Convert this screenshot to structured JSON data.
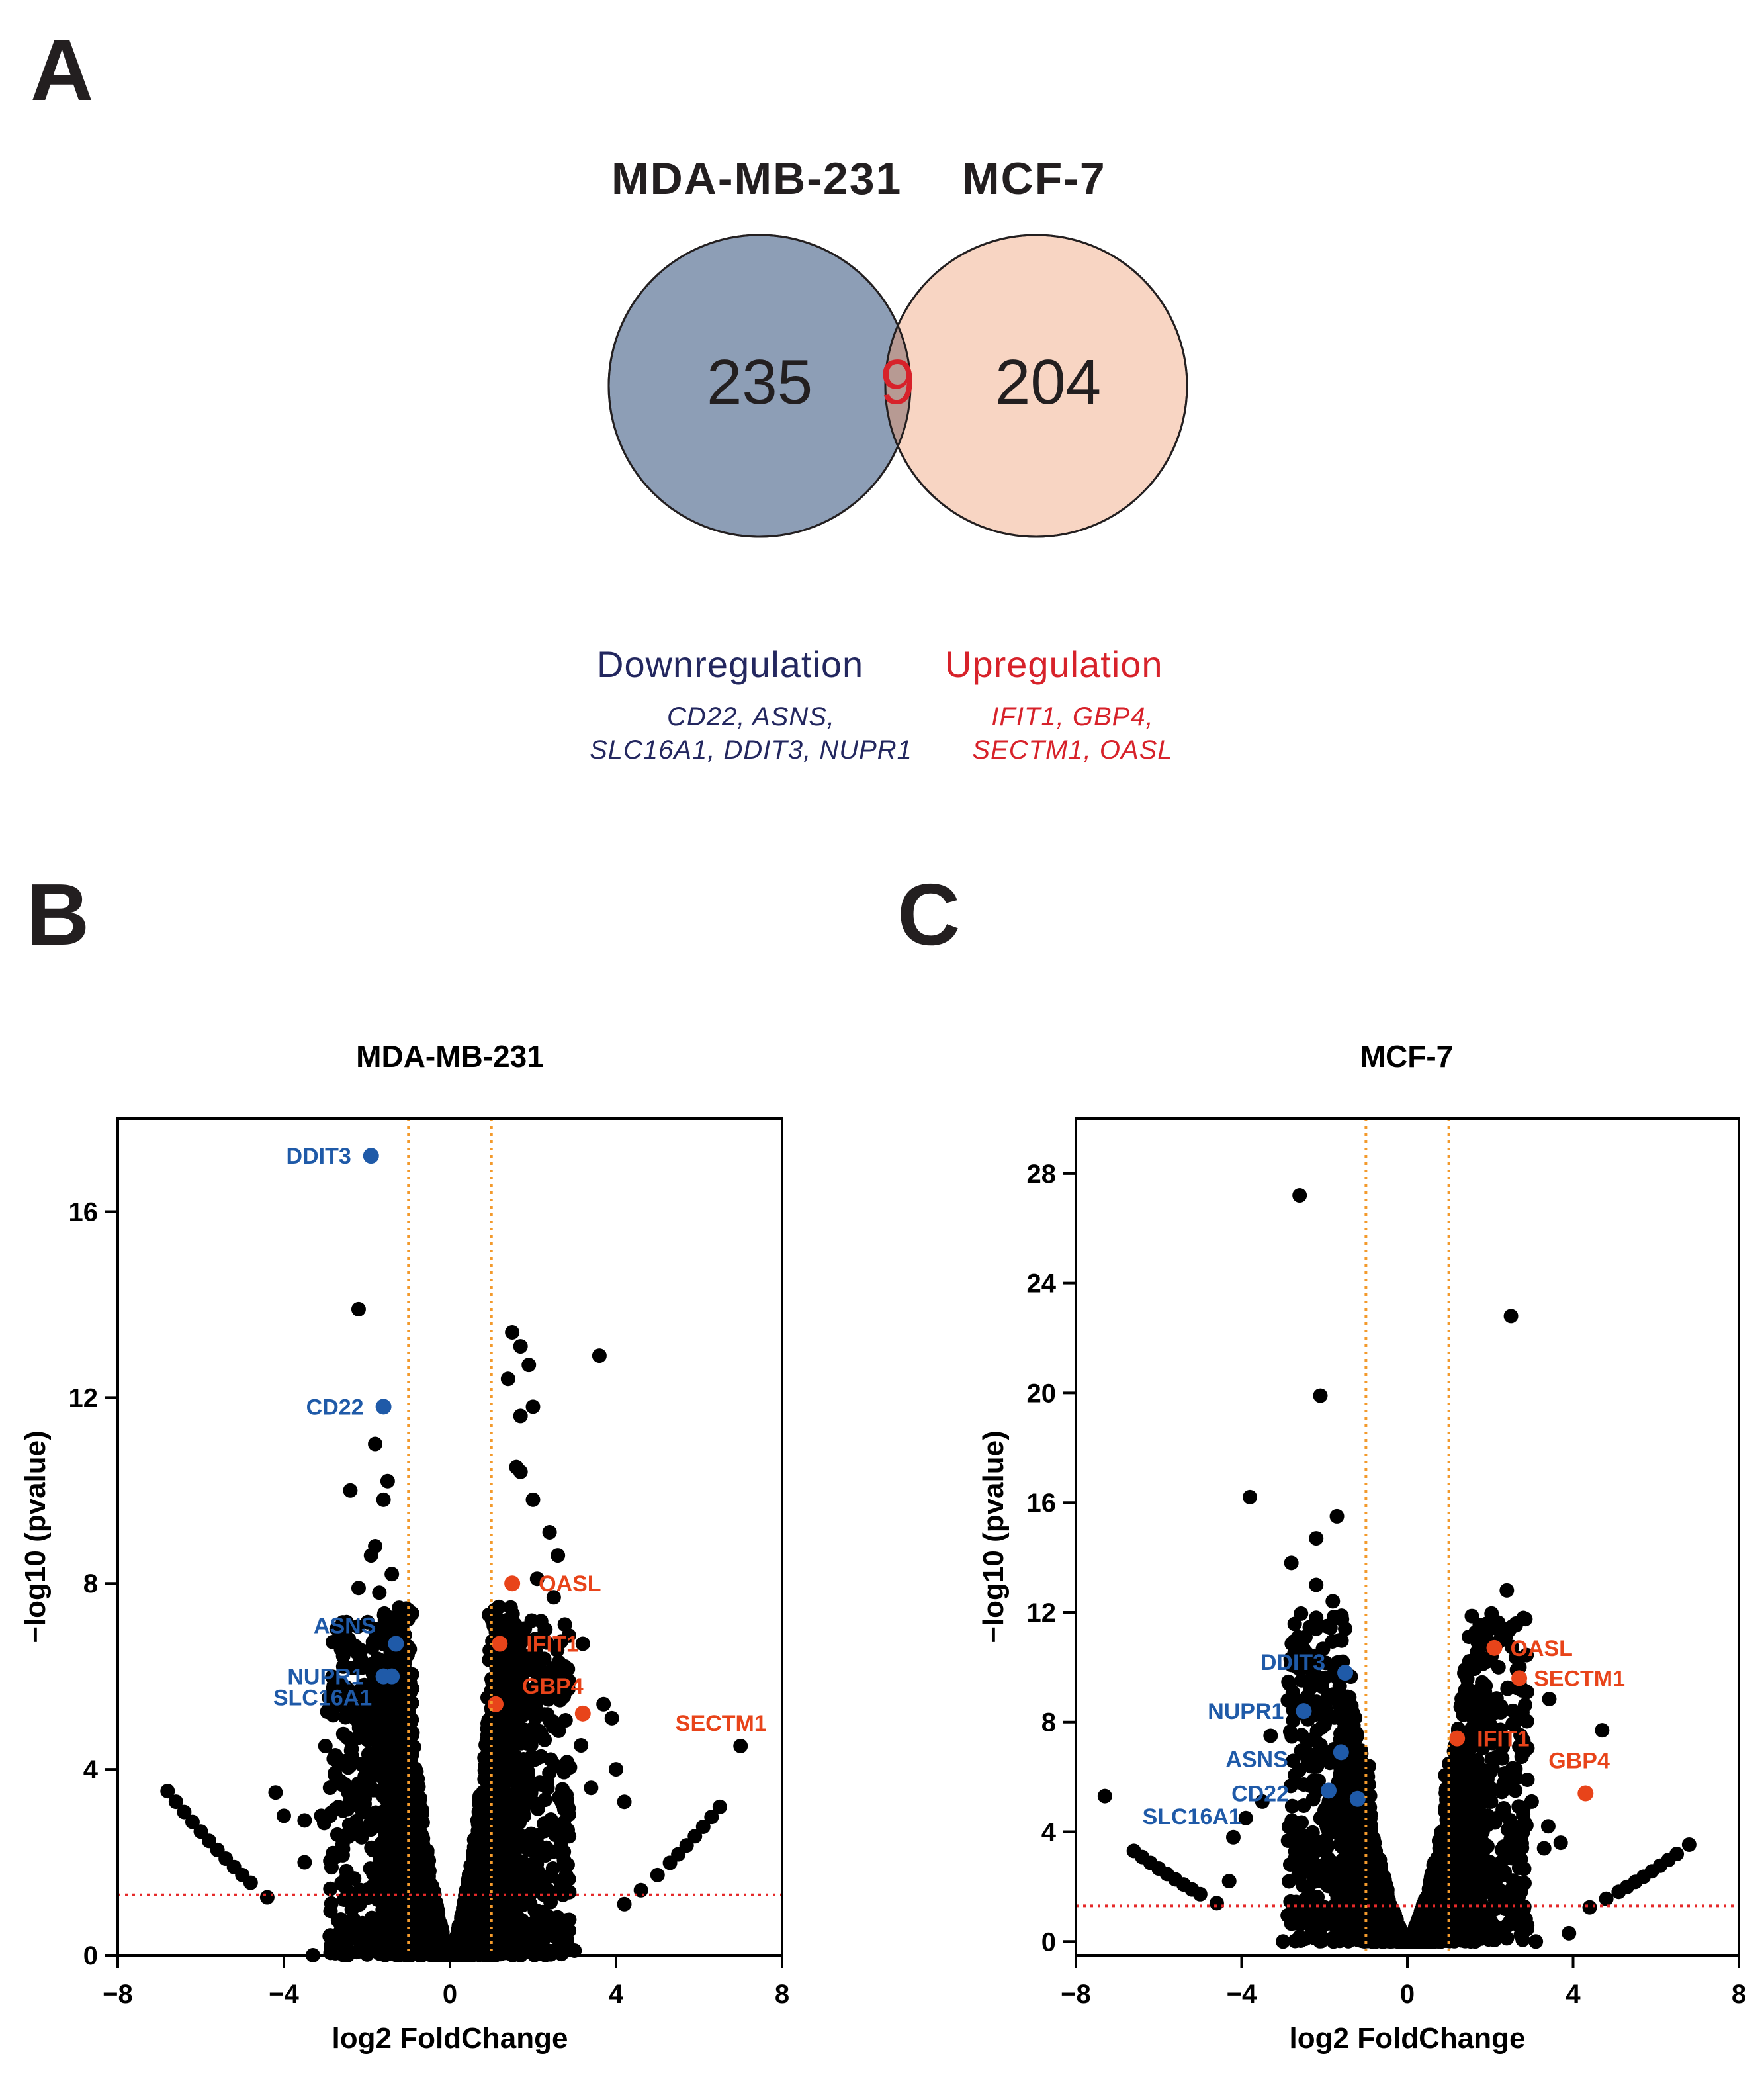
{
  "panels": {
    "a": "A",
    "b": "B",
    "c": "C"
  },
  "venn": {
    "left_label": "MDA-MB-231",
    "right_label": "MCF-7",
    "left_only": "235",
    "overlap": "9",
    "right_only": "204",
    "left_color": "#8d9eb6",
    "right_color": "#f8d5c3",
    "overlap_color": "#b79a93",
    "overlap_text_color": "#d7222a"
  },
  "legend": {
    "down_title": "Downregulation",
    "down_genes_line1": "CD22, ASNS,",
    "down_genes_line2": "SLC16A1, DDIT3, NUPR1",
    "down_color": "#23275f",
    "up_title": "Upregulation",
    "up_genes_line1": "IFIT1, GBP4,",
    "up_genes_line2": "SECTM1, OASL",
    "up_color": "#d7222a"
  },
  "chart_data": [
    {
      "type": "scatter",
      "panel": "B",
      "title": "MDA-MB-231",
      "xlabel": "log2 FoldChange",
      "ylabel": "−log10 (pvalue)",
      "xlim": [
        -8,
        8
      ],
      "ylim": [
        0,
        18
      ],
      "xticks": [
        -8,
        -4,
        0,
        4,
        8
      ],
      "yticks": [
        0,
        4,
        8,
        12,
        16
      ],
      "fc_cutoff": 1,
      "p_cutoff": 1.3,
      "colors": {
        "ns": "#000000",
        "down": "#1f5aa8",
        "up": "#e8441a",
        "threshold_v": "#f39a2c",
        "threshold_h": "#e52a2a"
      },
      "highlighted": [
        {
          "gene": "DDIT3",
          "x": -1.9,
          "y": 17.2,
          "dir": "down"
        },
        {
          "gene": "CD22",
          "x": -1.6,
          "y": 11.8,
          "dir": "down"
        },
        {
          "gene": "ASNS",
          "x": -1.3,
          "y": 6.7,
          "dir": "down"
        },
        {
          "gene": "NUPR1",
          "x": -1.6,
          "y": 6.0,
          "dir": "down"
        },
        {
          "gene": "SLC16A1",
          "x": -1.4,
          "y": 6.0,
          "dir": "down"
        },
        {
          "gene": "OASL",
          "x": 1.5,
          "y": 8.0,
          "dir": "up"
        },
        {
          "gene": "IFIT1",
          "x": 1.2,
          "y": 6.7,
          "dir": "up"
        },
        {
          "gene": "GBP4",
          "x": 1.1,
          "y": 5.4,
          "dir": "up"
        },
        {
          "gene": "SECTM1",
          "x": 3.2,
          "y": 5.2,
          "dir": "up"
        }
      ],
      "outliers": [
        [
          -2.2,
          13.9
        ],
        [
          -1.8,
          11.0
        ],
        [
          -2.4,
          10.0
        ],
        [
          -1.5,
          10.2
        ],
        [
          -1.6,
          9.8
        ],
        [
          -1.8,
          8.8
        ],
        [
          -1.9,
          8.6
        ],
        [
          -2.2,
          7.9
        ],
        [
          -1.7,
          7.8
        ],
        [
          -1.4,
          8.2
        ],
        [
          -2.6,
          6.6
        ],
        [
          -1.2,
          7.1
        ],
        [
          -2.8,
          5.8
        ],
        [
          -2.2,
          5.0
        ],
        [
          -3.0,
          4.5
        ],
        [
          -2.5,
          4.1
        ],
        [
          -3.1,
          3.0
        ],
        [
          -4.2,
          3.5
        ],
        [
          -3.5,
          2.9
        ],
        [
          1.5,
          13.4
        ],
        [
          1.7,
          13.1
        ],
        [
          1.4,
          12.4
        ],
        [
          1.9,
          12.7
        ],
        [
          2.0,
          11.8
        ],
        [
          1.7,
          11.6
        ],
        [
          1.6,
          10.5
        ],
        [
          1.7,
          10.4
        ],
        [
          3.6,
          12.9
        ],
        [
          2.0,
          9.8
        ],
        [
          2.4,
          9.1
        ],
        [
          2.6,
          8.6
        ],
        [
          2.1,
          8.1
        ],
        [
          2.5,
          7.7
        ],
        [
          3.2,
          6.7
        ],
        [
          3.7,
          5.4
        ],
        [
          3.9,
          5.1
        ],
        [
          4.0,
          4.0
        ],
        [
          3.4,
          3.6
        ],
        [
          4.2,
          3.3
        ],
        [
          7.0,
          4.5
        ],
        [
          -4.0,
          3.0
        ],
        [
          -3.5,
          2.0
        ],
        [
          3.0,
          0.1
        ],
        [
          -3.3,
          0.0
        ]
      ],
      "left_arm_x": [
        -6.8,
        -6.6,
        -6.4,
        -6.2,
        -6.0,
        -5.8,
        -5.6,
        -5.4,
        -5.2,
        -5.0,
        -4.8,
        -4.4
      ],
      "right_arm_x": [
        4.2,
        4.6,
        5.0,
        5.3,
        5.5,
        5.7,
        5.9,
        6.1,
        6.3,
        6.5
      ]
    },
    {
      "type": "scatter",
      "panel": "C",
      "title": "MCF-7",
      "xlabel": "log2 FoldChange",
      "ylabel": "−log10 (pvalue)",
      "xlim": [
        -8,
        8
      ],
      "ylim": [
        -0.5,
        30
      ],
      "xticks": [
        -8,
        -4,
        0,
        4,
        8
      ],
      "yticks": [
        0,
        4,
        8,
        12,
        16,
        20,
        24,
        28
      ],
      "fc_cutoff": 1,
      "p_cutoff": 1.3,
      "colors": {
        "ns": "#000000",
        "down": "#1f5aa8",
        "up": "#e8441a",
        "threshold_v": "#f39a2c",
        "threshold_h": "#e52a2a"
      },
      "highlighted": [
        {
          "gene": "DDIT3",
          "x": -1.5,
          "y": 9.8,
          "dir": "down"
        },
        {
          "gene": "NUPR1",
          "x": -2.5,
          "y": 8.4,
          "dir": "down"
        },
        {
          "gene": "ASNS",
          "x": -1.6,
          "y": 6.9,
          "dir": "down"
        },
        {
          "gene": "CD22",
          "x": -1.9,
          "y": 5.5,
          "dir": "down"
        },
        {
          "gene": "SLC16A1",
          "x": -1.2,
          "y": 5.2,
          "dir": "down"
        },
        {
          "gene": "OASL",
          "x": 2.1,
          "y": 10.7,
          "dir": "up"
        },
        {
          "gene": "SECTM1",
          "x": 2.7,
          "y": 9.6,
          "dir": "up"
        },
        {
          "gene": "IFIT1",
          "x": 1.2,
          "y": 7.4,
          "dir": "up"
        },
        {
          "gene": "GBP4",
          "x": 4.3,
          "y": 5.4,
          "dir": "up"
        }
      ],
      "outliers": [
        [
          -2.6,
          27.2
        ],
        [
          -2.1,
          19.9
        ],
        [
          -3.8,
          16.2
        ],
        [
          -1.7,
          15.5
        ],
        [
          -2.2,
          14.7
        ],
        [
          -2.8,
          13.8
        ],
        [
          -2.2,
          13.0
        ],
        [
          -1.8,
          12.4
        ],
        [
          -2.2,
          11.8
        ],
        [
          -2.2,
          11.4
        ],
        [
          -1.5,
          11.4
        ],
        [
          -2.7,
          10.1
        ],
        [
          -2.0,
          9.6
        ],
        [
          -1.8,
          9.0
        ],
        [
          -1.4,
          8.9
        ],
        [
          -3.3,
          7.5
        ],
        [
          -2.1,
          7.1
        ],
        [
          -1.4,
          7.4
        ],
        [
          -2.4,
          6.5
        ],
        [
          -3.5,
          5.1
        ],
        [
          -3.9,
          4.5
        ],
        [
          -4.2,
          3.8
        ],
        [
          2.5,
          22.8
        ],
        [
          2.4,
          12.8
        ],
        [
          1.9,
          11.1
        ],
        [
          1.7,
          10.9
        ],
        [
          2.2,
          10.0
        ],
        [
          1.8,
          9.1
        ],
        [
          2.0,
          7.9
        ],
        [
          4.7,
          7.7
        ],
        [
          2.7,
          7.1
        ],
        [
          1.6,
          6.4
        ],
        [
          1.9,
          6.0
        ],
        [
          2.4,
          5.7
        ],
        [
          3.0,
          5.1
        ],
        [
          2.3,
          4.8
        ],
        [
          3.4,
          4.2
        ],
        [
          3.7,
          3.6
        ],
        [
          -7.3,
          5.3
        ],
        [
          -4.3,
          2.2
        ],
        [
          -3.0,
          0.0
        ],
        [
          3.1,
          0.0
        ],
        [
          3.9,
          0.3
        ]
      ],
      "left_arm_x": [
        -6.6,
        -6.4,
        -6.2,
        -6.0,
        -5.8,
        -5.6,
        -5.4,
        -5.2,
        -5.0,
        -4.6
      ],
      "right_arm_x": [
        4.4,
        4.8,
        5.1,
        5.3,
        5.5,
        5.7,
        5.9,
        6.1,
        6.3,
        6.5,
        6.8
      ]
    }
  ]
}
